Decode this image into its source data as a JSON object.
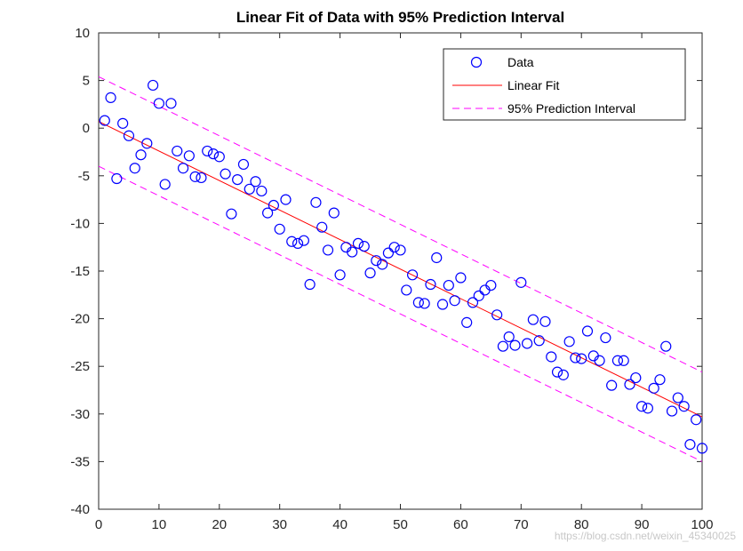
{
  "chart_data": {
    "type": "scatter",
    "title": "Linear Fit of Data with 95% Prediction Interval",
    "xlabel": "",
    "ylabel": "",
    "xlim": [
      0,
      100
    ],
    "ylim": [
      -40,
      10
    ],
    "xticks": [
      0,
      10,
      20,
      30,
      40,
      50,
      60,
      70,
      80,
      90,
      100
    ],
    "yticks": [
      10,
      5,
      0,
      -5,
      -10,
      -15,
      -20,
      -25,
      -30,
      -35,
      -40
    ],
    "grid": false,
    "legend_position": "top-right",
    "colors": {
      "data": "#0000ff",
      "fit": "#ff0000",
      "interval": "#ff00ff",
      "axes": "#262626"
    },
    "series": [
      {
        "name": "Data",
        "kind": "markers",
        "marker": "circle",
        "x": [
          1,
          2,
          3,
          4,
          5,
          6,
          7,
          8,
          9,
          10,
          11,
          12,
          13,
          14,
          15,
          16,
          17,
          18,
          19,
          20,
          21,
          22,
          23,
          24,
          25,
          26,
          27,
          28,
          29,
          30,
          31,
          32,
          33,
          34,
          35,
          36,
          37,
          38,
          39,
          40,
          41,
          42,
          43,
          44,
          45,
          46,
          47,
          48,
          49,
          50,
          51,
          52,
          53,
          54,
          55,
          56,
          57,
          58,
          59,
          60,
          61,
          62,
          63,
          64,
          65,
          66,
          67,
          68,
          69,
          70,
          71,
          72,
          73,
          74,
          75,
          76,
          77,
          78,
          79,
          80,
          81,
          82,
          83,
          84,
          85,
          86,
          87,
          88,
          89,
          90,
          91,
          92,
          93,
          94,
          95,
          96,
          97,
          98,
          99,
          100
        ],
        "y": [
          0.8,
          3.2,
          -5.3,
          0.5,
          -0.8,
          -4.2,
          -2.8,
          -1.6,
          4.5,
          2.6,
          -5.9,
          2.6,
          -2.4,
          -4.2,
          -2.9,
          -5.1,
          -5.2,
          -2.4,
          -2.7,
          -3.0,
          -4.8,
          -9.0,
          -5.4,
          -3.8,
          -6.4,
          -5.6,
          -6.6,
          -8.9,
          -8.1,
          -10.6,
          -7.5,
          -11.9,
          -12.1,
          -11.8,
          -16.4,
          -7.8,
          -10.4,
          -12.8,
          -8.9,
          -15.4,
          -12.5,
          -13.0,
          -12.1,
          -12.4,
          -15.2,
          -13.9,
          -14.3,
          -13.1,
          -12.5,
          -12.8,
          -17.0,
          -15.4,
          -18.3,
          -18.4,
          -16.4,
          -13.6,
          -18.5,
          -16.5,
          -18.1,
          -15.7,
          -20.4,
          -18.3,
          -17.6,
          -17.0,
          -16.5,
          -19.6,
          -22.9,
          -21.9,
          -22.8,
          -16.2,
          -22.6,
          -20.1,
          -22.3,
          -20.3,
          -24.0,
          -25.6,
          -25.9,
          -22.4,
          -24.1,
          -24.2,
          -21.3,
          -23.9,
          -24.4,
          -22.0,
          -27.0,
          -24.4,
          -24.4,
          -26.9,
          -26.2,
          -29.2,
          -29.4,
          -27.3,
          -26.4,
          -22.9,
          -29.7,
          -28.3,
          -29.2,
          -33.2,
          -30.6,
          -33.6
        ]
      },
      {
        "name": "Linear Fit",
        "kind": "line",
        "style": "solid",
        "x": [
          0,
          100
        ],
        "y": [
          0.7,
          -30.3
        ]
      },
      {
        "name": "95% Prediction Interval",
        "kind": "line",
        "style": "dashed",
        "x": [
          0,
          100
        ],
        "y": [
          5.4,
          -25.6
        ]
      },
      {
        "name": "",
        "kind": "line",
        "style": "dashed",
        "x": [
          0,
          100
        ],
        "y": [
          -4.0,
          -35.0
        ]
      }
    ]
  },
  "watermark": "https://blog.csdn.net/weixin_45340025"
}
